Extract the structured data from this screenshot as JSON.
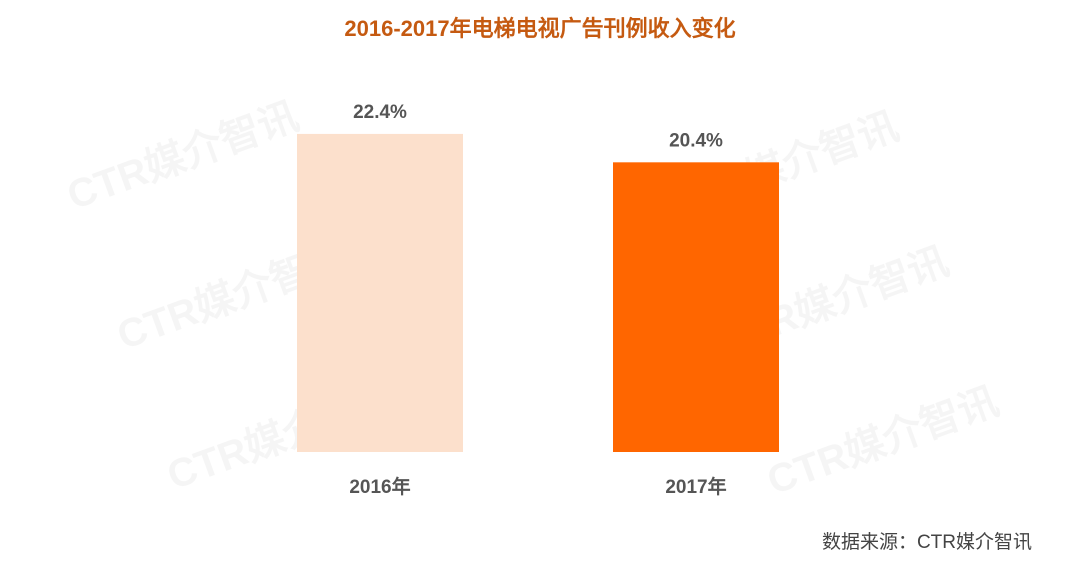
{
  "chart_data": {
    "type": "bar",
    "title": "2016-2017年电梯电视广告刊例收入变化",
    "categories": [
      "2016年",
      "2017年"
    ],
    "values": [
      22.4,
      20.4
    ],
    "value_labels": [
      "22.4%",
      "20.4%"
    ],
    "colors": [
      "#fce0cc",
      "#ff6600"
    ],
    "source": "数据来源：CTR媒介智讯",
    "watermark": "CTR媒介智讯"
  }
}
